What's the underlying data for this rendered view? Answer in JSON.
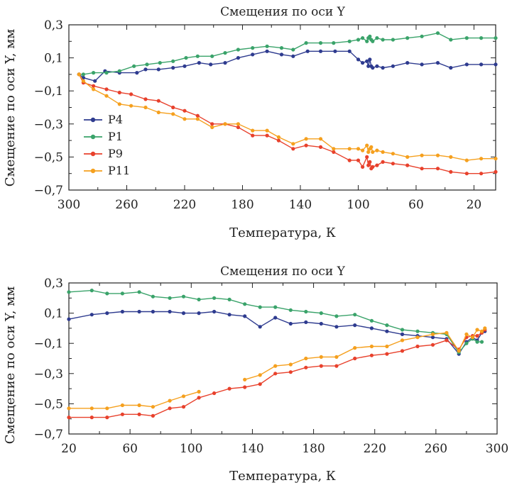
{
  "chart_data": [
    {
      "type": "line",
      "title": "Смещения по оси Y",
      "xlabel": "Температура, К",
      "ylabel": "Смещение по оси Y, мм",
      "xlim": [
        300,
        5
      ],
      "ylim": [
        -0.7,
        0.3
      ],
      "xticks": [
        300,
        260,
        220,
        180,
        140,
        100,
        60,
        20
      ],
      "xtick_labels": [
        "300",
        "260",
        "220",
        "180",
        "140",
        "100",
        "60",
        "20"
      ],
      "yticks": [
        0.3,
        0.1,
        -0.1,
        -0.3,
        -0.5,
        -0.7
      ],
      "ytick_labels": [
        "0,3",
        "0,1",
        "−0,1",
        "−0,3",
        "−0,5",
        "−0,7"
      ],
      "legend": "left",
      "series": [
        {
          "name": "P4",
          "color": "#2e3b8f",
          "x": [
            293,
            290,
            282,
            275,
            265,
            253,
            247,
            238,
            228,
            220,
            210,
            202,
            192,
            183,
            173,
            163,
            153,
            145,
            135,
            126,
            116,
            106,
            100,
            97,
            94,
            93,
            92,
            91,
            90,
            87,
            83,
            76,
            66,
            56,
            45,
            36,
            25,
            15,
            5
          ],
          "y": [
            0.0,
            -0.02,
            -0.04,
            0.02,
            0.01,
            0.01,
            0.03,
            0.03,
            0.04,
            0.05,
            0.07,
            0.06,
            0.07,
            0.1,
            0.12,
            0.14,
            0.12,
            0.11,
            0.14,
            0.14,
            0.14,
            0.14,
            0.09,
            0.07,
            0.08,
            0.05,
            0.09,
            0.05,
            0.04,
            0.05,
            0.04,
            0.05,
            0.07,
            0.06,
            0.07,
            0.04,
            0.06,
            0.06,
            0.06
          ]
        },
        {
          "name": "P1",
          "color": "#3aa36a",
          "x": [
            293,
            290,
            283,
            274,
            265,
            255,
            246,
            237,
            228,
            219,
            211,
            201,
            192,
            183,
            173,
            163,
            153,
            145,
            136,
            126,
            117,
            106,
            100,
            97,
            94,
            93,
            92,
            91,
            90,
            87,
            83,
            76,
            66,
            56,
            45,
            36,
            25,
            15,
            5
          ],
          "y": [
            0.0,
            0.0,
            0.01,
            0.01,
            0.02,
            0.05,
            0.06,
            0.07,
            0.08,
            0.1,
            0.11,
            0.11,
            0.13,
            0.15,
            0.16,
            0.17,
            0.16,
            0.15,
            0.19,
            0.19,
            0.19,
            0.2,
            0.21,
            0.22,
            0.2,
            0.22,
            0.23,
            0.21,
            0.2,
            0.22,
            0.21,
            0.21,
            0.22,
            0.23,
            0.25,
            0.21,
            0.22,
            0.22,
            0.22
          ]
        },
        {
          "name": "P9",
          "color": "#e8412c",
          "x": [
            293,
            290,
            283,
            274,
            265,
            257,
            247,
            238,
            228,
            220,
            211,
            201,
            192,
            183,
            173,
            163,
            155,
            145,
            136,
            126,
            117,
            106,
            100,
            97,
            94,
            93,
            92,
            91,
            90,
            87,
            83,
            76,
            66,
            56,
            45,
            36,
            25,
            15,
            5
          ],
          "y": [
            0.0,
            -0.05,
            -0.07,
            -0.09,
            -0.11,
            -0.12,
            -0.15,
            -0.16,
            -0.2,
            -0.22,
            -0.25,
            -0.3,
            -0.3,
            -0.32,
            -0.37,
            -0.37,
            -0.4,
            -0.45,
            -0.43,
            -0.44,
            -0.47,
            -0.52,
            -0.52,
            -0.56,
            -0.5,
            -0.55,
            -0.53,
            -0.57,
            -0.56,
            -0.55,
            -0.53,
            -0.54,
            -0.55,
            -0.57,
            -0.57,
            -0.59,
            -0.6,
            -0.6,
            -0.59
          ]
        },
        {
          "name": "P11",
          "color": "#f5a01e",
          "x": [
            293,
            290,
            283,
            274,
            265,
            257,
            247,
            238,
            228,
            220,
            211,
            201,
            192,
            183,
            173,
            163,
            155,
            145,
            136,
            126,
            117,
            106,
            100,
            97,
            94,
            93,
            92,
            91,
            90,
            87,
            83,
            76,
            66,
            56,
            45,
            36,
            25,
            15,
            5
          ],
          "y": [
            0.0,
            -0.04,
            -0.09,
            -0.13,
            -0.18,
            -0.19,
            -0.2,
            -0.23,
            -0.24,
            -0.27,
            -0.27,
            -0.32,
            -0.3,
            -0.3,
            -0.34,
            -0.34,
            -0.38,
            -0.42,
            -0.39,
            -0.39,
            -0.45,
            -0.45,
            -0.45,
            -0.46,
            -0.43,
            -0.47,
            -0.45,
            -0.44,
            -0.47,
            -0.46,
            -0.47,
            -0.48,
            -0.5,
            -0.49,
            -0.49,
            -0.5,
            -0.52,
            -0.51,
            -0.51
          ]
        }
      ]
    },
    {
      "type": "line",
      "title": "Смещения по оси Y",
      "xlabel": "Температура, К",
      "ylabel": "Смещение по оси Y, мм",
      "xlim": [
        20,
        300
      ],
      "ylim": [
        -0.7,
        0.3
      ],
      "xticks": [
        20,
        60,
        100,
        140,
        180,
        220,
        260,
        300
      ],
      "xtick_labels": [
        "20",
        "60",
        "100",
        "140",
        "180",
        "220",
        "260",
        "300"
      ],
      "yticks": [
        0.3,
        0.1,
        -0.1,
        -0.3,
        -0.5,
        -0.7
      ],
      "ytick_labels": [
        "0,3",
        "0,1",
        "−0,1",
        "−0,3",
        "−0,5",
        "−0,7"
      ],
      "series": [
        {
          "name": "P4",
          "color": "#2e3b8f",
          "x": [
            20,
            35,
            45,
            55,
            66,
            75,
            86,
            95,
            105,
            115,
            125,
            135,
            145,
            155,
            165,
            175,
            185,
            195,
            207,
            218,
            228,
            238,
            248,
            258,
            267,
            275,
            280,
            284,
            287,
            290,
            292
          ],
          "y": [
            0.06,
            0.09,
            0.1,
            0.11,
            0.11,
            0.11,
            0.11,
            0.1,
            0.1,
            0.11,
            0.09,
            0.08,
            0.01,
            0.07,
            0.03,
            0.04,
            0.03,
            0.01,
            0.02,
            0.0,
            -0.02,
            -0.04,
            -0.05,
            -0.06,
            -0.07,
            -0.17,
            -0.09,
            -0.06,
            -0.08,
            -0.03,
            -0.02
          ]
        },
        {
          "name": "P1",
          "color": "#3aa36a",
          "x": [
            20,
            35,
            45,
            55,
            66,
            75,
            86,
            95,
            105,
            115,
            125,
            135,
            145,
            155,
            165,
            175,
            185,
            195,
            207,
            218,
            228,
            238,
            248,
            258,
            267,
            275,
            280,
            284,
            287,
            290
          ],
          "y": [
            0.24,
            0.25,
            0.23,
            0.23,
            0.24,
            0.21,
            0.2,
            0.21,
            0.19,
            0.2,
            0.19,
            0.16,
            0.14,
            0.14,
            0.12,
            0.11,
            0.1,
            0.08,
            0.09,
            0.05,
            0.02,
            -0.01,
            -0.02,
            -0.03,
            -0.04,
            -0.16,
            -0.1,
            -0.07,
            -0.09,
            -0.09
          ]
        },
        {
          "name": "P9",
          "color": "#e8412c",
          "x": [
            20,
            35,
            45,
            55,
            66,
            75,
            86,
            95,
            105,
            115,
            125,
            135,
            145,
            155,
            165,
            175,
            185,
            195,
            207,
            218,
            228,
            238,
            248,
            258,
            267,
            275,
            280,
            284,
            287,
            290,
            292
          ],
          "y": [
            -0.59,
            -0.59,
            -0.59,
            -0.57,
            -0.57,
            -0.58,
            -0.53,
            -0.52,
            -0.46,
            -0.43,
            -0.4,
            -0.39,
            -0.37,
            -0.3,
            -0.29,
            -0.26,
            -0.25,
            -0.25,
            -0.2,
            -0.18,
            -0.17,
            -0.15,
            -0.12,
            -0.11,
            -0.08,
            -0.14,
            -0.06,
            -0.05,
            -0.05,
            -0.03,
            -0.01
          ]
        },
        {
          "name": "P11",
          "color": "#f5a01e",
          "x": [
            20,
            35,
            45,
            55,
            66,
            75,
            86,
            95,
            105,
            135,
            145,
            155,
            165,
            175,
            185,
            195,
            207,
            218,
            228,
            238,
            248,
            258,
            267,
            275,
            280,
            284,
            287,
            290,
            292
          ],
          "y": [
            -0.53,
            -0.53,
            -0.53,
            -0.51,
            -0.51,
            -0.52,
            -0.48,
            -0.45,
            -0.42,
            -0.34,
            -0.31,
            -0.25,
            -0.24,
            -0.2,
            -0.19,
            -0.19,
            -0.13,
            -0.12,
            -0.12,
            -0.08,
            -0.06,
            -0.04,
            -0.03,
            -0.15,
            -0.04,
            -0.06,
            -0.01,
            -0.02,
            0.0
          ]
        }
      ]
    }
  ]
}
